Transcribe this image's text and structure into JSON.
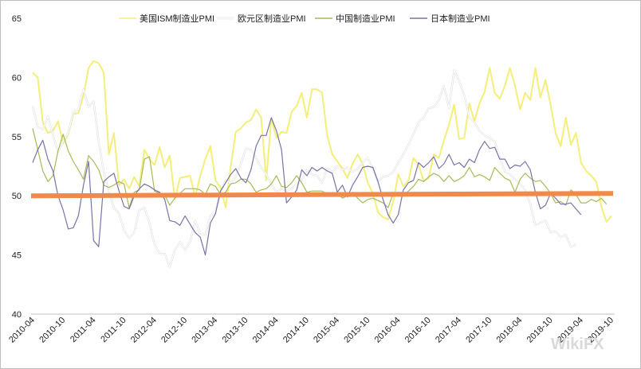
{
  "chart_data": {
    "type": "line",
    "title": "",
    "xlabel": "",
    "ylabel": "",
    "ylim": [
      40,
      65
    ],
    "yticks": [
      "40",
      "45",
      "50",
      "55",
      "60",
      "65"
    ],
    "xticks": [
      "2010-04",
      "2010-10",
      "2011-04",
      "2011-10",
      "2012-04",
      "2012-10",
      "2013-04",
      "2013-10",
      "2014-04",
      "2014-10",
      "2015-04",
      "2015-10",
      "2016-04",
      "2016-10",
      "2017-04",
      "2017-10",
      "2018-04",
      "2018-10",
      "2019-04",
      "2019-10"
    ],
    "grid": false,
    "legend_position": "top",
    "reference_line": {
      "value": 50,
      "color": "#f0894a"
    },
    "series": [
      {
        "name": "美国ISM制造业PMI",
        "color": "#f4ee7a",
        "values": [
          60.4,
          60.0,
          56.2,
          55.3,
          55.5,
          56.3,
          54.4,
          55.2,
          56.9,
          57.0,
          58.5,
          60.8,
          61.4,
          61.2,
          60.4,
          53.5,
          55.3,
          50.9,
          51.4,
          50.6,
          51.6,
          50.8,
          53.9,
          53.1,
          52.6,
          54.1,
          52.4,
          53.4,
          49.7,
          51.5,
          51.6,
          51.7,
          49.9,
          51.7,
          53.1,
          54.2,
          51.3,
          50.7,
          49.0,
          52.5,
          55.4,
          55.7,
          56.2,
          56.4,
          57.3,
          56.6,
          51.3,
          56.5,
          54.9,
          55.4,
          55.3,
          57.1,
          57.6,
          58.7,
          56.6,
          59.0,
          59.0,
          58.7,
          55.1,
          53.5,
          52.9,
          52.3,
          51.5,
          52.7,
          53.5,
          52.7,
          51.1,
          50.2,
          48.6,
          48.2,
          48.0,
          49.5,
          51.8,
          50.8,
          51.3,
          53.2,
          52.6,
          51.3,
          51.5,
          53.5,
          53.2,
          54.7,
          56.0,
          57.7,
          54.8,
          54.9,
          57.8,
          56.3,
          57.8,
          58.8,
          60.8,
          58.7,
          58.2,
          59.3,
          60.8,
          59.3,
          57.3,
          58.7,
          58.1,
          60.8,
          58.3,
          59.8,
          57.7,
          55.3,
          54.2,
          56.6,
          54.3,
          55.3,
          52.8,
          52.1,
          51.7,
          51.2,
          49.1,
          47.8,
          48.3
        ]
      },
      {
        "name": "欧元区制造业PMI",
        "color": "#ffffff",
        "values": [
          57.6,
          55.8,
          55.6,
          56.7,
          55.1,
          53.7,
          54.6,
          55.3,
          57.1,
          57.3,
          59.0,
          57.5,
          58.0,
          54.6,
          52.0,
          50.4,
          49.0,
          48.5,
          47.1,
          46.4,
          46.9,
          48.8,
          49.0,
          47.7,
          45.9,
          45.1,
          45.1,
          44.0,
          45.4,
          46.1,
          45.4,
          46.1,
          47.9,
          46.8,
          46.7,
          48.3,
          48.7,
          50.3,
          51.3,
          51.1,
          51.6,
          52.7,
          54.0,
          53.9,
          53.2,
          52.4,
          51.8,
          51.0,
          50.3,
          50.6,
          50.4,
          50.6,
          51.0,
          51.3,
          52.2,
          51.8,
          51.7,
          51.1,
          52.3,
          52.0,
          52.5,
          52.2,
          52.4,
          52.0,
          52.3,
          52.8,
          53.2,
          52.3,
          51.2,
          51.6,
          51.7,
          52.0,
          52.8,
          53.5,
          54.3,
          55.2,
          56.2,
          56.6,
          57.4,
          57.5,
          58.1,
          59.3,
          57.4,
          60.6,
          59.7,
          58.5,
          56.6,
          56.2,
          55.5,
          55.1,
          54.9,
          54.6,
          53.2,
          52.0,
          51.8,
          51.4,
          51.0,
          50.5,
          49.3,
          47.5,
          47.7,
          47.9,
          46.9,
          47.0,
          46.5,
          46.7,
          45.7,
          45.9
        ]
      },
      {
        "name": "中国制造业PMI",
        "color": "#a9b85a",
        "values": [
          55.7,
          53.9,
          52.1,
          51.2,
          51.7,
          53.8,
          55.2,
          53.8,
          52.9,
          52.2,
          51.4,
          53.4,
          52.9,
          52.2,
          50.9,
          50.7,
          50.9,
          51.2,
          51.0,
          49.0,
          50.3,
          50.5,
          53.1,
          53.3,
          50.4,
          50.2,
          50.1,
          49.2,
          49.8,
          50.2,
          50.6,
          50.6,
          50.6,
          50.5,
          50.1,
          51.0,
          50.8,
          50.1,
          50.3,
          51.0,
          51.1,
          51.4,
          51.4,
          51.0,
          50.3,
          50.5,
          50.6,
          51.0,
          51.7,
          50.8,
          50.7,
          51.1,
          51.7,
          51.1,
          50.3,
          50.4,
          50.4,
          50.4,
          50.1,
          50.1,
          50.2,
          49.8,
          50.0,
          50.3,
          49.8,
          49.4,
          49.7,
          49.8,
          49.6,
          49.4,
          49.0,
          50.2,
          50.1,
          50.0,
          50.4,
          50.8,
          51.4,
          51.2,
          51.6,
          51.9,
          51.7,
          51.2,
          51.7,
          51.2,
          51.4,
          51.7,
          52.4,
          51.6,
          51.8,
          51.6,
          51.3,
          52.4,
          51.9,
          51.5,
          51.3,
          50.3,
          51.4,
          51.9,
          51.5,
          51.2,
          51.3,
          50.8,
          50.2,
          49.4,
          49.5,
          49.2,
          50.5,
          50.1,
          49.4,
          49.4,
          49.7,
          49.5,
          49.8,
          49.3
        ]
      },
      {
        "name": "日本制造业PMI",
        "color": "#7a72a8",
        "values": [
          52.8,
          53.9,
          54.7,
          53.1,
          52.1,
          50.0,
          48.8,
          47.2,
          47.3,
          48.3,
          50.9,
          52.9,
          46.2,
          45.7,
          51.2,
          51.6,
          51.9,
          50.4,
          49.1,
          48.9,
          50.0,
          50.6,
          51.0,
          50.8,
          50.5,
          50.3,
          49.7,
          47.9,
          47.8,
          47.5,
          48.3,
          47.6,
          46.9,
          46.5,
          45.0,
          47.7,
          48.5,
          50.4,
          51.1,
          51.8,
          52.3,
          51.5,
          51.1,
          52.2,
          54.2,
          55.1,
          55.1,
          56.6,
          55.5,
          53.9,
          49.4,
          49.9,
          50.5,
          52.2,
          51.7,
          52.4,
          52.1,
          52.4,
          52.1,
          51.9,
          50.3,
          50.9,
          49.9,
          50.9,
          51.6,
          52.4,
          52.5,
          52.4,
          51.2,
          49.7,
          48.4,
          47.7,
          48.4,
          50.5,
          51.1,
          51.3,
          52.8,
          52.4,
          52.8,
          53.3,
          52.3,
          52.7,
          53.5,
          52.6,
          52.8,
          52.4,
          53.1,
          52.8,
          53.9,
          54.6,
          54.0,
          54.1,
          53.1,
          53.1,
          52.3,
          52.6,
          52.5,
          52.9,
          52.2,
          50.3,
          48.9,
          49.2,
          50.2,
          49.8,
          49.3,
          49.3,
          49.4,
          48.9,
          48.4
        ]
      }
    ]
  },
  "watermark": "WikiFX"
}
